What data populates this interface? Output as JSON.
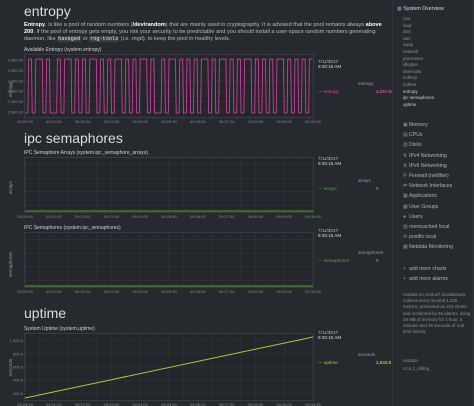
{
  "entropy": {
    "title": "entropy",
    "desc": {
      "p1": "Entropy",
      "p2": ", is like a pool of random numbers (",
      "p3": "/dev/random",
      "p4": ") that are mainly used in cryptography. It is advised that the pool remains always ",
      "p5": "above 200",
      "p6": ". If the pool of entropy gets empty, you risk your security to be predictable and you should install a user-space random numbers generating daemon, like ",
      "code1": "haveged",
      "p7": " or ",
      "code2": "rng-tools",
      "p8": " (i.e. ",
      "p9": "rngd",
      "p10": "), to keep the pool in healthy levels."
    },
    "chart_title": "Available Entropy (system.entropy)",
    "yaxis_label": "entropy",
    "yticks": [
      "4,000.00",
      "3,500.00",
      "3,000.00",
      "2,500.00",
      "2,000.00",
      "1,500.00"
    ],
    "legend": {
      "date": "7/11/2017",
      "time": "9:30:15 AM",
      "unit": "entropy",
      "series": "entropy",
      "value": "4,057.00"
    }
  },
  "ipc": {
    "title": "ipc semaphores",
    "arrays": {
      "chart_title": "IPC Semaphore Arrays (system.ipc_semaphore_arrays)",
      "yaxis_label": "arrays",
      "legend": {
        "date": "7/11/2017",
        "time": "9:30:15 AM",
        "unit": "arrays",
        "series": "arrays",
        "value": "0"
      }
    },
    "semaphores": {
      "chart_title": "IPC Semaphores (system.ipc_semaphores)",
      "yaxis_label": "semaphores",
      "legend": {
        "date": "7/11/2017",
        "time": "9:30:15 AM",
        "unit": "semaphores",
        "series": "semaphores",
        "value": "0"
      }
    }
  },
  "uptime": {
    "title": "uptime",
    "chart_title": "System Uptime (system.uptime)",
    "yaxis_label": "seconds",
    "yticks": [
      "1,000.0",
      "800.0",
      "600.0",
      "400.0",
      "200.0"
    ],
    "legend": {
      "date": "7/11/2017",
      "time": "9:30:15 AM",
      "unit": "seconds",
      "series": "uptime",
      "value": "1,043.0"
    }
  },
  "xticks": [
    "09:20:00",
    "09:20:30",
    "09:21:00",
    "09:21:30",
    "09:22:00",
    "09:22:30",
    "09:23:00",
    "09:23:30",
    "09:24:00",
    "09:24:30",
    "09:25:00",
    "09:25:30",
    "09:26:00",
    "09:26:30",
    "09:27:00",
    "09:27:30",
    "09:28:00",
    "09:28:30",
    "09:29:00",
    "09:29:30",
    "09:30:00"
  ],
  "sidebar": {
    "header": "System Overview",
    "sub_items": [
      "cpu",
      "load",
      "disk",
      "ram",
      "swap",
      "network",
      "processes",
      "idlejitter",
      "interrupts",
      "softirqs",
      "softnet",
      "entropy",
      "ipc semaphores",
      "uptime"
    ],
    "menus": [
      "Memory",
      "CPUs",
      "Disks",
      "IPv4 Networking",
      "IPv6 Networking",
      "Firewall (netfilter)",
      "Network Interfaces",
      "Applications",
      "User Groups",
      "Users",
      "memcached local",
      "postfix local",
      "Netdata Monitoring"
    ],
    "links": [
      "add more charts",
      "add more alarms"
    ],
    "note": "netdata on centos7.localdomain, collects every second 1,236 metrics, presented as 219 charts and monitored by 66 alarms, using 28 MB of memory for 1 hour, 6 minutes and 36 seconds of real-time history.",
    "version_name": "netdata",
    "version": "v1.6.1_rolling"
  },
  "colors": {
    "entropy": "#e040a8",
    "arrays": "#53a32c",
    "semaphores": "#53a32c",
    "uptime": "#9fd02e",
    "grid": "#34383c"
  }
}
